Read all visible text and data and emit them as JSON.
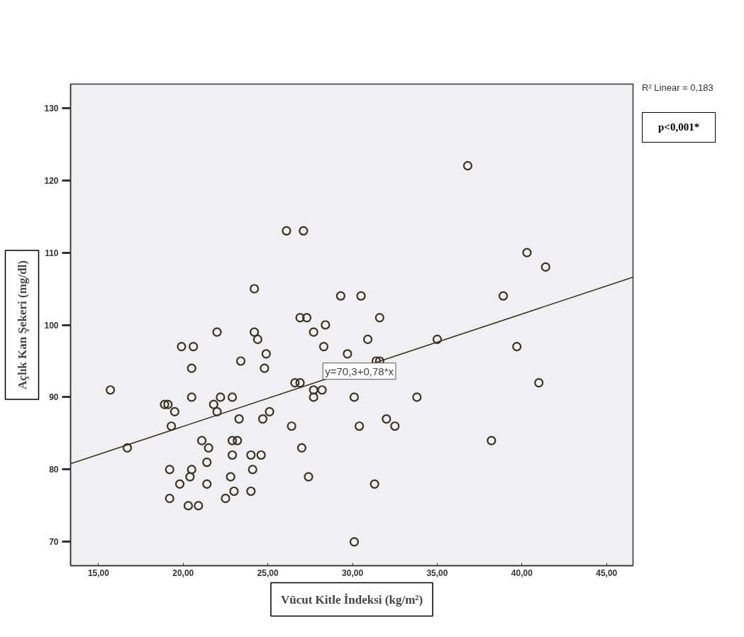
{
  "chart_data": {
    "type": "scatter",
    "xlabel": "Vücut Kitle İndeksi (kg/m²)",
    "ylabel": "Açlık Kan Şekeri (mg/dl)",
    "annotations": [
      "R² Linear = 0,183",
      "p<0,001*",
      {
        "text": "y=70,3+0,78*x",
        "x": 30.4,
        "y": 93.6
      }
    ],
    "xlim": [
      13.35,
      46.56
    ],
    "ylim": [
      66.7,
      133.3
    ],
    "xticks": [
      {
        "value": 15,
        "label": "15,00"
      },
      {
        "value": 20,
        "label": "20,00"
      },
      {
        "value": 25,
        "label": "25,00"
      },
      {
        "value": 30,
        "label": "30,00"
      },
      {
        "value": 35,
        "label": "35,00"
      },
      {
        "value": 40,
        "label": "40,00"
      },
      {
        "value": 45,
        "label": "45,00"
      }
    ],
    "yticks": [
      70,
      80,
      90,
      100,
      110,
      120,
      130
    ],
    "grid": false,
    "series": [
      {
        "marker": "circle",
        "color": "#3a3324",
        "x": [
          15.7,
          16.7,
          18.9,
          19.1,
          19.5,
          19.3,
          19.9,
          20.6,
          20.5,
          20.5,
          19.2,
          20.5,
          20.4,
          19.8,
          19.2,
          20.3,
          20.9,
          21.1,
          21.5,
          21.4,
          21.4,
          22.0,
          21.8,
          22.2,
          22.0,
          22.9,
          23.4,
          23.3,
          22.9,
          23.2,
          22.9,
          22.8,
          23.0,
          22.5,
          24.2,
          24.2,
          24.4,
          24.9,
          24.8,
          24.7,
          25.1,
          24.0,
          24.6,
          24.1,
          24.0,
          26.1,
          27.1,
          36.8,
          40.3,
          41.4,
          29.3,
          30.5,
          38.9,
          26.9,
          27.3,
          31.6,
          28.4,
          27.7,
          28.3,
          30.9,
          35.0,
          39.7,
          29.7,
          31.4,
          31.6,
          26.6,
          26.9,
          27.7,
          28.2,
          27.7,
          30.1,
          33.8,
          41.0,
          26.4,
          30.4,
          32.0,
          32.5,
          38.2,
          27.0,
          27.4,
          31.3,
          30.1
        ],
        "values": [
          91,
          83,
          89,
          89,
          88,
          86,
          97,
          97,
          94,
          90,
          80,
          80,
          79,
          78,
          76,
          75,
          75,
          84,
          83,
          81,
          78,
          99,
          89,
          90,
          88,
          90,
          95,
          87,
          84,
          84,
          82,
          79,
          77,
          76,
          105,
          99,
          98,
          96,
          94,
          87,
          88,
          82,
          82,
          80,
          77,
          113,
          113,
          122,
          110,
          108,
          104,
          104,
          104,
          101,
          101,
          101,
          100,
          99,
          97,
          98,
          98,
          97,
          96,
          95,
          95,
          92,
          92,
          91,
          91,
          90,
          90,
          90,
          92,
          86,
          86,
          87,
          86,
          84,
          83,
          79,
          78,
          70
        ]
      },
      {
        "type": "line",
        "marker": "none",
        "color": "#3a3324",
        "x": [
          13.35,
          46.56
        ],
        "values": [
          80.8,
          106.6
        ]
      }
    ]
  }
}
